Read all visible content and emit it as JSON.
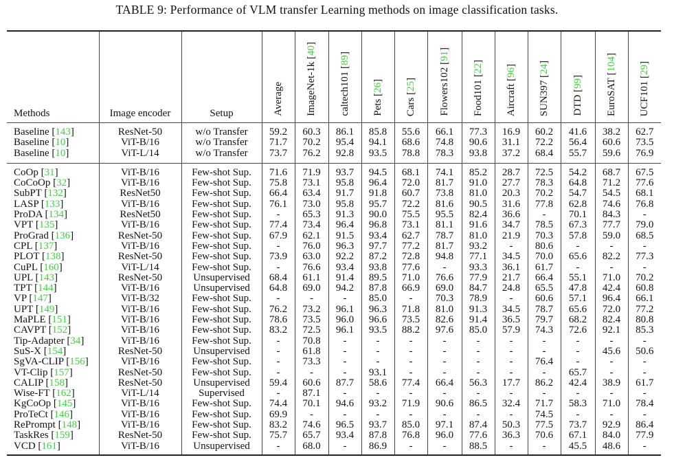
{
  "caption": "TABLE 9: Performance of VLM transfer Learning methods on image classification tasks.",
  "headers": {
    "methods": "Methods",
    "encoder": "Image encoder",
    "setup": "Setup",
    "datasets": [
      {
        "name": "Average",
        "ref": ""
      },
      {
        "name": "ImageNet-1k",
        "ref": "40"
      },
      {
        "name": "caltech101",
        "ref": "89"
      },
      {
        "name": "Pets",
        "ref": "26"
      },
      {
        "name": "Cars",
        "ref": "25"
      },
      {
        "name": "Flowers102",
        "ref": "91"
      },
      {
        "name": "Food101",
        "ref": "22"
      },
      {
        "name": "Aircraft",
        "ref": "96"
      },
      {
        "name": "SUN397",
        "ref": "24"
      },
      {
        "name": "DTD",
        "ref": "99"
      },
      {
        "name": "EuroSAT",
        "ref": "104"
      },
      {
        "name": "UCF101",
        "ref": "29"
      }
    ]
  },
  "baseline_rows": [
    {
      "method": "Baseline",
      "ref": "143",
      "encoder": "ResNet-50",
      "setup": "w/o Transfer",
      "values": [
        "59.2",
        "60.3",
        "86.1",
        "85.8",
        "55.6",
        "66.1",
        "77.3",
        "16.9",
        "60.2",
        "41.6",
        "38.2",
        "62.7"
      ]
    },
    {
      "method": "Baseline",
      "ref": "10",
      "encoder": "ViT-B/16",
      "setup": "w/o Transfer",
      "values": [
        "71.7",
        "70.2",
        "95.4",
        "94.1",
        "68.6",
        "74.8",
        "90.6",
        "31.1",
        "72.2",
        "56.4",
        "60.6",
        "73.5"
      ]
    },
    {
      "method": "Baseline",
      "ref": "10",
      "encoder": "ViT-L/14",
      "setup": "w/o Transfer",
      "values": [
        "73.7",
        "76.2",
        "92.8",
        "93.5",
        "78.8",
        "78.3",
        "93.8",
        "37.2",
        "68.4",
        "55.7",
        "59.6",
        "76.9"
      ]
    }
  ],
  "method_rows": [
    {
      "method": "CoOp",
      "ref": "31",
      "encoder": "ViT-B/16",
      "setup": "Few-shot Sup.",
      "values": [
        "71.6",
        "71.9",
        "93.7",
        "94.5",
        "68.1",
        "74.1",
        "85.2",
        "28.7",
        "72.5",
        "54.2",
        "68.7",
        "67.5"
      ]
    },
    {
      "method": "CoCoOp",
      "ref": "32",
      "encoder": "ViT-B/16",
      "setup": "Few-shot Sup.",
      "values": [
        "75.8",
        "73.1",
        "95.8",
        "96.4",
        "72.0",
        "81.7",
        "91.0",
        "27.7",
        "78.3",
        "64.8",
        "71.2",
        "77.6"
      ]
    },
    {
      "method": "SubPT",
      "ref": "132",
      "encoder": "ResNet50",
      "setup": "Few-shot Sup.",
      "values": [
        "66.4",
        "63.4",
        "91.7",
        "91.8",
        "60.7",
        "73.8",
        "81.0",
        "20.3",
        "70.2",
        "54.7",
        "54.5",
        "68.1"
      ]
    },
    {
      "method": "LASP",
      "ref": "133",
      "encoder": "ViT-B/16",
      "setup": "Few-shot Sup.",
      "values": [
        "76.1",
        "73.0",
        "95.8",
        "95.7",
        "72.2",
        "81.6",
        "90.5",
        "31.6",
        "77.8",
        "62.8",
        "74.6",
        "76.8"
      ]
    },
    {
      "method": "ProDA",
      "ref": "134",
      "encoder": "ResNet50",
      "setup": "Few-shot Sup.",
      "values": [
        "-",
        "65.3",
        "91.3",
        "90.0",
        "75.5",
        "95.5",
        "82.4",
        "36.6",
        "-",
        "70.1",
        "84.3",
        "-"
      ]
    },
    {
      "method": "VPT",
      "ref": "135",
      "encoder": "ViT-B/16",
      "setup": "Few-shot Sup.",
      "values": [
        "77.4",
        "73.4",
        "96.4",
        "96.8",
        "73.1",
        "81.1",
        "91.6",
        "34.7",
        "78.5",
        "67.3",
        "77.7",
        "79.0"
      ]
    },
    {
      "method": "ProGrad",
      "ref": "136",
      "encoder": "ResNet-50",
      "setup": "Few-shot Sup.",
      "values": [
        "67.9",
        "62.1",
        "91.5",
        "93.4",
        "62.7",
        "78.7",
        "81.0",
        "21.9",
        "70.3",
        "57.8",
        "59.0",
        "68.5"
      ]
    },
    {
      "method": "CPL",
      "ref": "137",
      "encoder": "ViT-B/16",
      "setup": "Few-shot Sup.",
      "values": [
        "-",
        "76.0",
        "96.3",
        "97.7",
        "77.2",
        "81.7",
        "93.2",
        "-",
        "80.6",
        "-",
        "-",
        "-"
      ]
    },
    {
      "method": "PLOT",
      "ref": "138",
      "encoder": "ResNet-50",
      "setup": "Few-shot Sup.",
      "values": [
        "73.9",
        "63.0",
        "92.2",
        "87.2",
        "72.8",
        "94.8",
        "77.1",
        "34.5",
        "70.0",
        "65.6",
        "82.2",
        "77.3"
      ]
    },
    {
      "method": "CuPL",
      "ref": "160",
      "encoder": "ViT-L/14",
      "setup": "Few-shot Sup.",
      "values": [
        "-",
        "76.6",
        "93.4",
        "93.8",
        "77.6",
        "-",
        "93.3",
        "36.1",
        "61.7",
        "-",
        "-",
        "-"
      ]
    },
    {
      "method": "UPL",
      "ref": "143",
      "encoder": "ResNet-50",
      "setup": "Unsupervised",
      "values": [
        "68.4",
        "61.1",
        "91.4",
        "89.5",
        "71.0",
        "76.6",
        "77.9",
        "21.7",
        "66.4",
        "55.1",
        "71.0",
        "70.2"
      ]
    },
    {
      "method": "TPT",
      "ref": "144",
      "encoder": "ViT-B/16",
      "setup": "Unsupervised",
      "values": [
        "64.8",
        "69.0",
        "94.2",
        "87.8",
        "66.9",
        "69.0",
        "84.7",
        "24.8",
        "65.5",
        "47.8",
        "42.4",
        "60.8"
      ]
    },
    {
      "method": "VP",
      "ref": "147",
      "encoder": "ViT-B/32",
      "setup": "Few-shot Sup.",
      "values": [
        "-",
        "-",
        "-",
        "85.0",
        "-",
        "70.3",
        "78.9",
        "-",
        "60.6",
        "57.1",
        "96.4",
        "66.1"
      ]
    },
    {
      "method": "UPT",
      "ref": "149",
      "encoder": "ViT-B/16",
      "setup": "Few-shot Sup.",
      "values": [
        "76.2",
        "73.2",
        "96.1",
        "96.3",
        "71.8",
        "81.0",
        "91.3",
        "34.5",
        "78.7",
        "65.6",
        "72.0",
        "77.2"
      ]
    },
    {
      "method": "MaPLE",
      "ref": "151",
      "encoder": "ViT-B/16",
      "setup": "Few-shot Sup.",
      "values": [
        "78.6",
        "73.5",
        "96.0",
        "96.6",
        "73.5",
        "82.6",
        "91.4",
        "36.5",
        "79.7",
        "68.2",
        "82.4",
        "80.8"
      ]
    },
    {
      "method": "CAVPT",
      "ref": "152",
      "encoder": "ViT-B/16",
      "setup": "Few-shot Sup.",
      "values": [
        "83.2",
        "72.5",
        "96.1",
        "93.5",
        "88.2",
        "97.6",
        "85.0",
        "57.9",
        "74.3",
        "72.6",
        "92.1",
        "85.3"
      ]
    },
    {
      "method": "Tip-Adapter",
      "ref": "34",
      "encoder": "ViT-B/16",
      "setup": "Few-shot Sup.",
      "values": [
        "-",
        "70.8",
        "-",
        "-",
        "-",
        "-",
        "-",
        "-",
        "-",
        "-",
        "-",
        "-"
      ]
    },
    {
      "method": "SuS-X",
      "ref": "154",
      "encoder": "ResNet-50",
      "setup": "Unsupervised",
      "values": [
        "-",
        "61.8",
        "-",
        "-",
        "-",
        "-",
        "-",
        "-",
        "-",
        "-",
        "45.6",
        "50.6"
      ]
    },
    {
      "method": "SgVA-CLIP",
      "ref": "156",
      "encoder": "ViT-B/16",
      "setup": "Few-shot Sup.",
      "values": [
        "-",
        "73.3",
        "-",
        "-",
        "-",
        "-",
        "-",
        "-",
        "76.4",
        "-",
        "-",
        "-"
      ]
    },
    {
      "method": "VT-Clip",
      "ref": "157",
      "encoder": "ResNet-50",
      "setup": "Few-shot Sup.",
      "values": [
        "-",
        "-",
        "-",
        "93.1",
        "-",
        "-",
        "-",
        "-",
        "-",
        "65.7",
        "-",
        "-"
      ]
    },
    {
      "method": "CALIP",
      "ref": "158",
      "encoder": "ResNet-50",
      "setup": "Unsupervised",
      "values": [
        "59.4",
        "60.6",
        "87.7",
        "58.6",
        "77.4",
        "66.4",
        "56.3",
        "17.7",
        "86.2",
        "42.4",
        "38.9",
        "61.7"
      ]
    },
    {
      "method": "Wise-FT",
      "ref": "162",
      "encoder": "ViT-L/14",
      "setup": "Supervised",
      "values": [
        "-",
        "87.1",
        "-",
        "-",
        "-",
        "-",
        "-",
        "-",
        "-",
        "-",
        "-",
        "-"
      ]
    },
    {
      "method": "KgCoOp",
      "ref": "145",
      "encoder": "ViT-B/16",
      "setup": "Few-shot Sup.",
      "values": [
        "74.4",
        "70.1",
        "94.6",
        "93.2",
        "71.9",
        "90.6",
        "86.5",
        "32.4",
        "71.7",
        "58.3",
        "71.0",
        "78.4"
      ]
    },
    {
      "method": "ProTeCt",
      "ref": "146",
      "encoder": "ViT-B/16",
      "setup": "Few-shot Sup.",
      "values": [
        "69.9",
        "-",
        "-",
        "-",
        "-",
        "-",
        "-",
        "-",
        "74.5",
        "-",
        "-",
        "-"
      ]
    },
    {
      "method": "RePrompt",
      "ref": "148",
      "encoder": "ViT-B/16",
      "setup": "Few-shot Sup.",
      "values": [
        "83.2",
        "74.6",
        "96.5",
        "93.7",
        "85.0",
        "97.1",
        "87.4",
        "50.3",
        "77.5",
        "73.7",
        "92.9",
        "86.4"
      ]
    },
    {
      "method": "TaskRes",
      "ref": "159",
      "encoder": "ResNet-50",
      "setup": "Few-shot Sup.",
      "values": [
        "75.7",
        "65.7",
        "93.4",
        "87.8",
        "76.8",
        "96.0",
        "77.6",
        "36.3",
        "70.6",
        "67.1",
        "84.0",
        "77.9"
      ]
    },
    {
      "method": "VCD",
      "ref": "161",
      "encoder": "ViT-B/16",
      "setup": "Unsupervised",
      "values": [
        "-",
        "68.0",
        "-",
        "86.9",
        "-",
        "-",
        "88.5",
        "-",
        "-",
        "45.5",
        "48.6",
        "-"
      ]
    }
  ]
}
